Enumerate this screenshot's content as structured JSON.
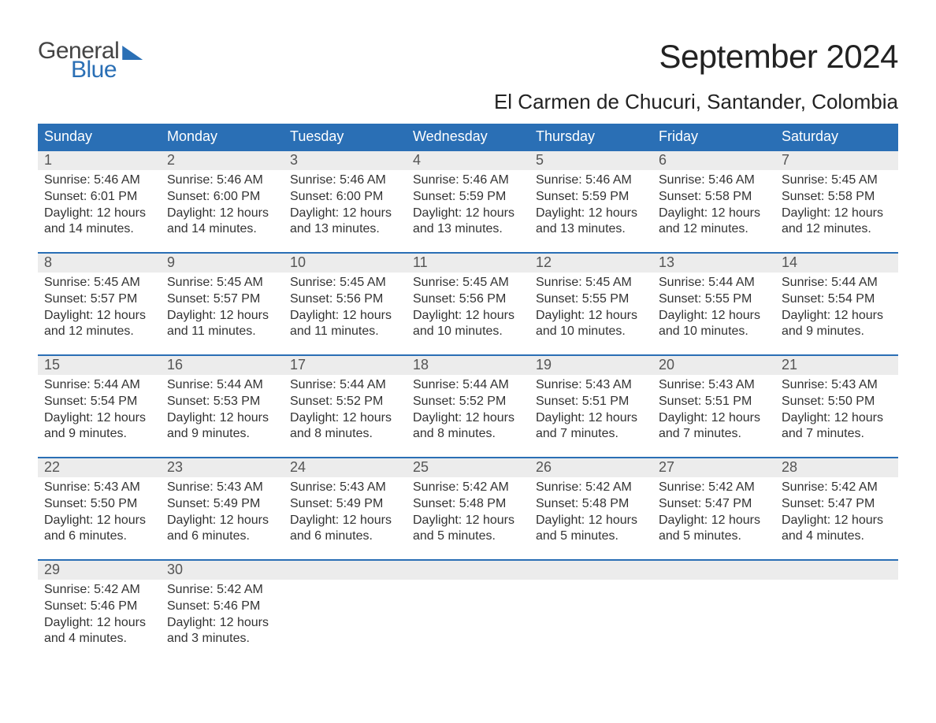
{
  "brand": {
    "top": "General",
    "bottom": "Blue"
  },
  "title": "September 2024",
  "location": "El Carmen de Chucuri, Santander, Colombia",
  "colors": {
    "header_bg": "#2a6fb5",
    "header_text": "#ffffff",
    "date_row_bg": "#ececec",
    "body_text": "#333333",
    "rule": "#2a6fb5",
    "page_bg": "#ffffff"
  },
  "day_names": [
    "Sunday",
    "Monday",
    "Tuesday",
    "Wednesday",
    "Thursday",
    "Friday",
    "Saturday"
  ],
  "weeks": [
    [
      {
        "date": "1",
        "sunrise": "Sunrise: 5:46 AM",
        "sunset": "Sunset: 6:01 PM",
        "dl1": "Daylight: 12 hours",
        "dl2": "and 14 minutes."
      },
      {
        "date": "2",
        "sunrise": "Sunrise: 5:46 AM",
        "sunset": "Sunset: 6:00 PM",
        "dl1": "Daylight: 12 hours",
        "dl2": "and 14 minutes."
      },
      {
        "date": "3",
        "sunrise": "Sunrise: 5:46 AM",
        "sunset": "Sunset: 6:00 PM",
        "dl1": "Daylight: 12 hours",
        "dl2": "and 13 minutes."
      },
      {
        "date": "4",
        "sunrise": "Sunrise: 5:46 AM",
        "sunset": "Sunset: 5:59 PM",
        "dl1": "Daylight: 12 hours",
        "dl2": "and 13 minutes."
      },
      {
        "date": "5",
        "sunrise": "Sunrise: 5:46 AM",
        "sunset": "Sunset: 5:59 PM",
        "dl1": "Daylight: 12 hours",
        "dl2": "and 13 minutes."
      },
      {
        "date": "6",
        "sunrise": "Sunrise: 5:46 AM",
        "sunset": "Sunset: 5:58 PM",
        "dl1": "Daylight: 12 hours",
        "dl2": "and 12 minutes."
      },
      {
        "date": "7",
        "sunrise": "Sunrise: 5:45 AM",
        "sunset": "Sunset: 5:58 PM",
        "dl1": "Daylight: 12 hours",
        "dl2": "and 12 minutes."
      }
    ],
    [
      {
        "date": "8",
        "sunrise": "Sunrise: 5:45 AM",
        "sunset": "Sunset: 5:57 PM",
        "dl1": "Daylight: 12 hours",
        "dl2": "and 12 minutes."
      },
      {
        "date": "9",
        "sunrise": "Sunrise: 5:45 AM",
        "sunset": "Sunset: 5:57 PM",
        "dl1": "Daylight: 12 hours",
        "dl2": "and 11 minutes."
      },
      {
        "date": "10",
        "sunrise": "Sunrise: 5:45 AM",
        "sunset": "Sunset: 5:56 PM",
        "dl1": "Daylight: 12 hours",
        "dl2": "and 11 minutes."
      },
      {
        "date": "11",
        "sunrise": "Sunrise: 5:45 AM",
        "sunset": "Sunset: 5:56 PM",
        "dl1": "Daylight: 12 hours",
        "dl2": "and 10 minutes."
      },
      {
        "date": "12",
        "sunrise": "Sunrise: 5:45 AM",
        "sunset": "Sunset: 5:55 PM",
        "dl1": "Daylight: 12 hours",
        "dl2": "and 10 minutes."
      },
      {
        "date": "13",
        "sunrise": "Sunrise: 5:44 AM",
        "sunset": "Sunset: 5:55 PM",
        "dl1": "Daylight: 12 hours",
        "dl2": "and 10 minutes."
      },
      {
        "date": "14",
        "sunrise": "Sunrise: 5:44 AM",
        "sunset": "Sunset: 5:54 PM",
        "dl1": "Daylight: 12 hours",
        "dl2": "and 9 minutes."
      }
    ],
    [
      {
        "date": "15",
        "sunrise": "Sunrise: 5:44 AM",
        "sunset": "Sunset: 5:54 PM",
        "dl1": "Daylight: 12 hours",
        "dl2": "and 9 minutes."
      },
      {
        "date": "16",
        "sunrise": "Sunrise: 5:44 AM",
        "sunset": "Sunset: 5:53 PM",
        "dl1": "Daylight: 12 hours",
        "dl2": "and 9 minutes."
      },
      {
        "date": "17",
        "sunrise": "Sunrise: 5:44 AM",
        "sunset": "Sunset: 5:52 PM",
        "dl1": "Daylight: 12 hours",
        "dl2": "and 8 minutes."
      },
      {
        "date": "18",
        "sunrise": "Sunrise: 5:44 AM",
        "sunset": "Sunset: 5:52 PM",
        "dl1": "Daylight: 12 hours",
        "dl2": "and 8 minutes."
      },
      {
        "date": "19",
        "sunrise": "Sunrise: 5:43 AM",
        "sunset": "Sunset: 5:51 PM",
        "dl1": "Daylight: 12 hours",
        "dl2": "and 7 minutes."
      },
      {
        "date": "20",
        "sunrise": "Sunrise: 5:43 AM",
        "sunset": "Sunset: 5:51 PM",
        "dl1": "Daylight: 12 hours",
        "dl2": "and 7 minutes."
      },
      {
        "date": "21",
        "sunrise": "Sunrise: 5:43 AM",
        "sunset": "Sunset: 5:50 PM",
        "dl1": "Daylight: 12 hours",
        "dl2": "and 7 minutes."
      }
    ],
    [
      {
        "date": "22",
        "sunrise": "Sunrise: 5:43 AM",
        "sunset": "Sunset: 5:50 PM",
        "dl1": "Daylight: 12 hours",
        "dl2": "and 6 minutes."
      },
      {
        "date": "23",
        "sunrise": "Sunrise: 5:43 AM",
        "sunset": "Sunset: 5:49 PM",
        "dl1": "Daylight: 12 hours",
        "dl2": "and 6 minutes."
      },
      {
        "date": "24",
        "sunrise": "Sunrise: 5:43 AM",
        "sunset": "Sunset: 5:49 PM",
        "dl1": "Daylight: 12 hours",
        "dl2": "and 6 minutes."
      },
      {
        "date": "25",
        "sunrise": "Sunrise: 5:42 AM",
        "sunset": "Sunset: 5:48 PM",
        "dl1": "Daylight: 12 hours",
        "dl2": "and 5 minutes."
      },
      {
        "date": "26",
        "sunrise": "Sunrise: 5:42 AM",
        "sunset": "Sunset: 5:48 PM",
        "dl1": "Daylight: 12 hours",
        "dl2": "and 5 minutes."
      },
      {
        "date": "27",
        "sunrise": "Sunrise: 5:42 AM",
        "sunset": "Sunset: 5:47 PM",
        "dl1": "Daylight: 12 hours",
        "dl2": "and 5 minutes."
      },
      {
        "date": "28",
        "sunrise": "Sunrise: 5:42 AM",
        "sunset": "Sunset: 5:47 PM",
        "dl1": "Daylight: 12 hours",
        "dl2": "and 4 minutes."
      }
    ],
    [
      {
        "date": "29",
        "sunrise": "Sunrise: 5:42 AM",
        "sunset": "Sunset: 5:46 PM",
        "dl1": "Daylight: 12 hours",
        "dl2": "and 4 minutes."
      },
      {
        "date": "30",
        "sunrise": "Sunrise: 5:42 AM",
        "sunset": "Sunset: 5:46 PM",
        "dl1": "Daylight: 12 hours",
        "dl2": "and 3 minutes."
      },
      {
        "date": "",
        "sunrise": "",
        "sunset": "",
        "dl1": "",
        "dl2": ""
      },
      {
        "date": "",
        "sunrise": "",
        "sunset": "",
        "dl1": "",
        "dl2": ""
      },
      {
        "date": "",
        "sunrise": "",
        "sunset": "",
        "dl1": "",
        "dl2": ""
      },
      {
        "date": "",
        "sunrise": "",
        "sunset": "",
        "dl1": "",
        "dl2": ""
      },
      {
        "date": "",
        "sunrise": "",
        "sunset": "",
        "dl1": "",
        "dl2": ""
      }
    ]
  ]
}
